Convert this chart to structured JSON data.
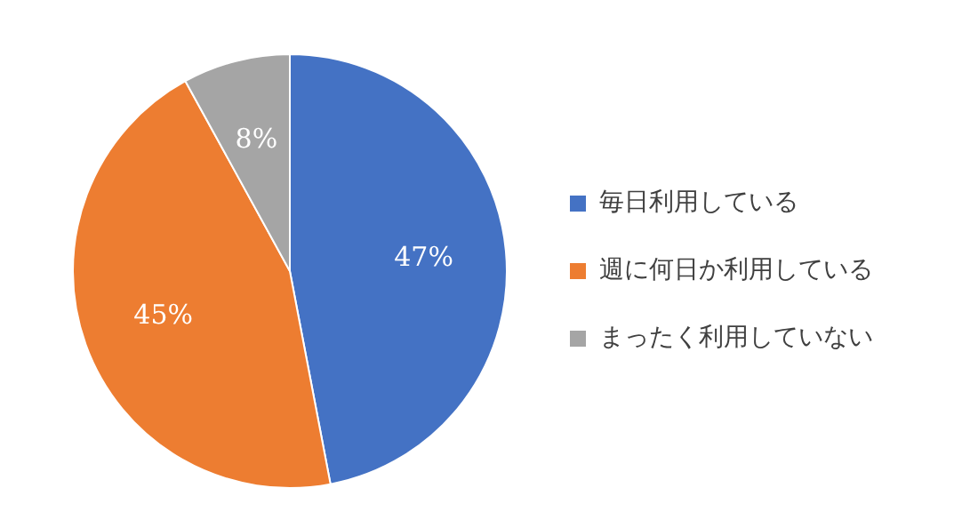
{
  "chart_data": {
    "type": "pie",
    "categories": [
      "毎日利用している",
      "週に何日か利用している",
      "まったく利用していない"
    ],
    "values": [
      47,
      45,
      8
    ],
    "colors": [
      "#4472c4",
      "#ed7d31",
      "#a5a5a5"
    ],
    "value_labels": [
      "47%",
      "45%",
      "8%"
    ],
    "legend": "right"
  }
}
